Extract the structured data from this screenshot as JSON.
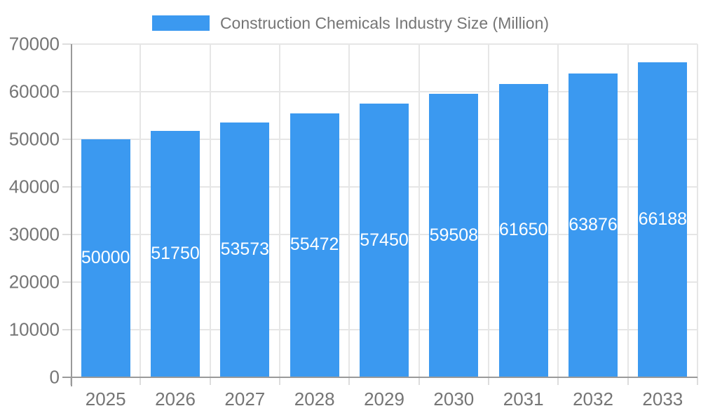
{
  "chart_data": {
    "type": "bar",
    "title": "Construction Chemicals Industry Size (Million)",
    "legend_position": "top",
    "categories": [
      "2025",
      "2026",
      "2027",
      "2028",
      "2029",
      "2030",
      "2031",
      "2032",
      "2033"
    ],
    "series": [
      {
        "name": "Construction Chemicals Industry Size (Million)",
        "values": [
          50000,
          51750,
          53573,
          55472,
          57450,
          59508,
          61650,
          63876,
          66188
        ]
      }
    ],
    "xlabel": "",
    "ylabel": "",
    "ylim": [
      0,
      70000
    ],
    "ytick_step": 10000,
    "ytick_labels": [
      "0",
      "10000",
      "20000",
      "30000",
      "40000",
      "50000",
      "60000",
      "70000"
    ],
    "grid": true,
    "bar_labels_inside": true,
    "colors": {
      "bar": "#3B99F0",
      "bar_label": "#FFFFFF",
      "text": "#757575",
      "gridline": "#E6E6E6",
      "tick": "#DDDDDD",
      "axis_line": "#9A9A9A",
      "background": "#FFFFFF"
    }
  }
}
